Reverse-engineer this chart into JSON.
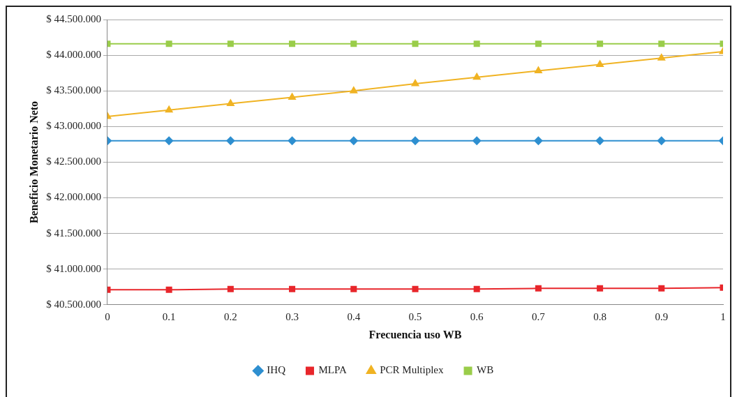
{
  "chart_data": {
    "type": "line",
    "xlabel": "Frecuencia uso WB",
    "ylabel": "Beneficio Monetario Neto",
    "x": [
      0,
      0.1,
      0.2,
      0.3,
      0.4,
      0.5,
      0.6,
      0.7,
      0.8,
      0.9,
      1
    ],
    "series": [
      {
        "name": "IHQ",
        "color": "#2e8fd0",
        "marker": "diamond",
        "values": [
          42800000,
          42800000,
          42800000,
          42800000,
          42800000,
          42800000,
          42800000,
          42800000,
          42800000,
          42800000,
          42800000
        ]
      },
      {
        "name": "MLPA",
        "color": "#e8262b",
        "marker": "square",
        "values": [
          40710000,
          40710000,
          40720000,
          40720000,
          40720000,
          40720000,
          40720000,
          40730000,
          40730000,
          40730000,
          40740000
        ]
      },
      {
        "name": "PCR Multiplex",
        "color": "#f0b323",
        "marker": "triangle",
        "values": [
          43140000,
          43230000,
          43320000,
          43410000,
          43500000,
          43600000,
          43690000,
          43780000,
          43870000,
          43960000,
          44050000
        ]
      },
      {
        "name": "WB",
        "color": "#9acd4a",
        "marker": "square",
        "values": [
          44160000,
          44160000,
          44160000,
          44160000,
          44160000,
          44160000,
          44160000,
          44160000,
          44160000,
          44160000,
          44160000
        ]
      }
    ],
    "xlim": [
      0,
      1
    ],
    "xticks": [
      0,
      0.1,
      0.2,
      0.3,
      0.4,
      0.5,
      0.6,
      0.7,
      0.8,
      0.9,
      1
    ],
    "ylim": [
      40500000,
      44500000
    ],
    "yticks": [
      {
        "value": 40500000,
        "label": "$ 40.500.000"
      },
      {
        "value": 41000000,
        "label": "$ 41.000.000"
      },
      {
        "value": 41500000,
        "label": "$ 41.500.000"
      },
      {
        "value": 42000000,
        "label": "$ 42.000.000"
      },
      {
        "value": 42500000,
        "label": "$ 42.500.000"
      },
      {
        "value": 43000000,
        "label": "$ 43.000.000"
      },
      {
        "value": 43500000,
        "label": "$ 43.500.000"
      },
      {
        "value": 44000000,
        "label": "$ 44.000.000"
      },
      {
        "value": 44500000,
        "label": "$ 44.500.000"
      }
    ],
    "grid": "y",
    "legend": "bottom",
    "line_style": "solid"
  }
}
